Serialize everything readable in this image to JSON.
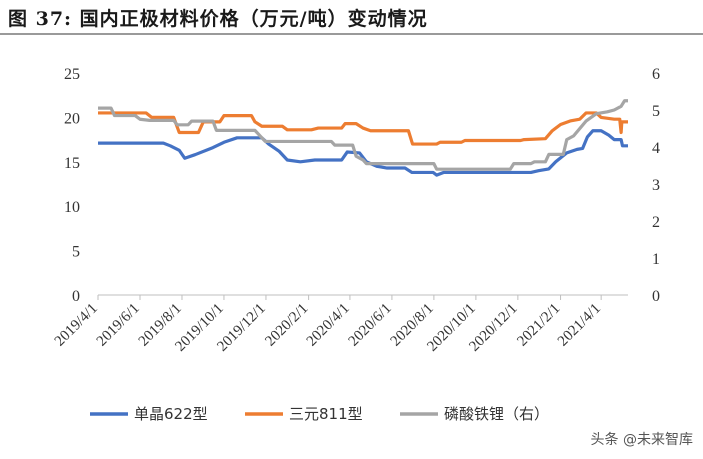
{
  "header": {
    "title": "图 37:  国内正极材料价格（万元/吨）变动情况"
  },
  "watermark": "头条 @未来智库",
  "chart_data": {
    "type": "line",
    "title": "图 37:  国内正极材料价格（万元/吨）变动情况",
    "y_left": {
      "min": 0,
      "max": 25,
      "ticks": [
        0,
        5,
        10,
        15,
        20,
        25
      ]
    },
    "y_right": {
      "min": 0,
      "max": 6,
      "ticks": [
        0,
        1,
        2,
        3,
        4,
        5,
        6
      ]
    },
    "x_range": [
      "2019-04-01",
      "2021-05-10"
    ],
    "x_ticks": [
      "2019/4/1",
      "2019/6/1",
      "2019/8/1",
      "2019/10/1",
      "2019/12/1",
      "2020/2/1",
      "2020/4/1",
      "2020/6/1",
      "2020/8/1",
      "2020/10/1",
      "2020/12/1",
      "2021/2/1",
      "2021/4/1"
    ],
    "grid": false,
    "legend_position": "bottom",
    "series": [
      {
        "name": "单晶622型",
        "axis": "left",
        "color": "#4472C4",
        "points": [
          [
            "2019-04-01",
            17.1
          ],
          [
            "2019-07-05",
            17.1
          ],
          [
            "2019-07-15",
            16.8
          ],
          [
            "2019-07-28",
            16.3
          ],
          [
            "2019-08-05",
            15.4
          ],
          [
            "2019-08-20",
            15.8
          ],
          [
            "2019-09-15",
            16.6
          ],
          [
            "2019-10-01",
            17.2
          ],
          [
            "2019-10-20",
            17.7
          ],
          [
            "2019-11-25",
            17.7
          ],
          [
            "2019-12-05",
            17.0
          ],
          [
            "2019-12-20",
            16.2
          ],
          [
            "2020-01-01",
            15.2
          ],
          [
            "2020-01-20",
            15.0
          ],
          [
            "2020-02-10",
            15.2
          ],
          [
            "2020-03-20",
            15.2
          ],
          [
            "2020-03-28",
            16.1
          ],
          [
            "2020-04-15",
            16.0
          ],
          [
            "2020-04-25",
            15.0
          ],
          [
            "2020-05-10",
            14.5
          ],
          [
            "2020-05-25",
            14.3
          ],
          [
            "2020-06-20",
            14.3
          ],
          [
            "2020-06-30",
            13.8
          ],
          [
            "2020-07-31",
            13.8
          ],
          [
            "2020-08-05",
            13.5
          ],
          [
            "2020-08-15",
            13.8
          ],
          [
            "2020-12-20",
            13.8
          ],
          [
            "2020-12-31",
            14.0
          ],
          [
            "2021-01-15",
            14.2
          ],
          [
            "2021-01-25",
            15.0
          ],
          [
            "2021-02-10",
            16.0
          ],
          [
            "2021-02-25",
            16.4
          ],
          [
            "2021-03-05",
            16.5
          ],
          [
            "2021-03-12",
            17.8
          ],
          [
            "2021-03-20",
            18.5
          ],
          [
            "2021-04-01",
            18.5
          ],
          [
            "2021-04-12",
            18.0
          ],
          [
            "2021-04-20",
            17.5
          ],
          [
            "2021-04-30",
            17.5
          ],
          [
            "2021-05-02",
            16.8
          ],
          [
            "2021-05-10",
            16.8
          ]
        ]
      },
      {
        "name": "三元811型",
        "axis": "left",
        "color": "#ED7D31",
        "points": [
          [
            "2019-04-01",
            20.5
          ],
          [
            "2019-06-10",
            20.5
          ],
          [
            "2019-06-18",
            20.0
          ],
          [
            "2019-07-20",
            20.0
          ],
          [
            "2019-07-28",
            18.3
          ],
          [
            "2019-08-25",
            18.3
          ],
          [
            "2019-09-01",
            19.5
          ],
          [
            "2019-09-25",
            19.5
          ],
          [
            "2019-10-01",
            20.2
          ],
          [
            "2019-11-10",
            20.2
          ],
          [
            "2019-11-15",
            19.5
          ],
          [
            "2019-11-25",
            19.0
          ],
          [
            "2019-12-25",
            19.0
          ],
          [
            "2020-01-01",
            18.6
          ],
          [
            "2020-02-05",
            18.6
          ],
          [
            "2020-02-15",
            18.8
          ],
          [
            "2020-03-20",
            18.8
          ],
          [
            "2020-03-25",
            19.3
          ],
          [
            "2020-04-10",
            19.3
          ],
          [
            "2020-04-20",
            18.8
          ],
          [
            "2020-05-01",
            18.5
          ],
          [
            "2020-06-25",
            18.5
          ],
          [
            "2020-07-01",
            17.0
          ],
          [
            "2020-08-05",
            17.0
          ],
          [
            "2020-08-10",
            17.2
          ],
          [
            "2020-09-10",
            17.2
          ],
          [
            "2020-09-15",
            17.4
          ],
          [
            "2020-12-05",
            17.4
          ],
          [
            "2020-12-10",
            17.5
          ],
          [
            "2021-01-10",
            17.6
          ],
          [
            "2021-01-20",
            18.5
          ],
          [
            "2021-02-01",
            19.2
          ],
          [
            "2021-02-15",
            19.6
          ],
          [
            "2021-03-01",
            19.8
          ],
          [
            "2021-03-10",
            20.5
          ],
          [
            "2021-03-25",
            20.5
          ],
          [
            "2021-04-01",
            20.0
          ],
          [
            "2021-04-20",
            19.8
          ],
          [
            "2021-04-28",
            19.8
          ],
          [
            "2021-04-30",
            18.3
          ],
          [
            "2021-05-01",
            19.5
          ],
          [
            "2021-05-10",
            19.5
          ]
        ]
      },
      {
        "name": "磷酸铁锂（右）",
        "axis": "right",
        "color": "#A5A5A5",
        "points": [
          [
            "2019-04-01",
            5.05
          ],
          [
            "2019-04-20",
            5.05
          ],
          [
            "2019-04-25",
            4.85
          ],
          [
            "2019-05-25",
            4.85
          ],
          [
            "2019-06-01",
            4.75
          ],
          [
            "2019-06-15",
            4.72
          ],
          [
            "2019-07-20",
            4.72
          ],
          [
            "2019-07-25",
            4.6
          ],
          [
            "2019-08-10",
            4.6
          ],
          [
            "2019-08-15",
            4.7
          ],
          [
            "2019-09-15",
            4.7
          ],
          [
            "2019-09-20",
            4.45
          ],
          [
            "2019-11-15",
            4.45
          ],
          [
            "2019-11-20",
            4.35
          ],
          [
            "2019-11-30",
            4.15
          ],
          [
            "2020-03-05",
            4.15
          ],
          [
            "2020-03-10",
            4.05
          ],
          [
            "2020-04-05",
            4.05
          ],
          [
            "2020-04-10",
            3.75
          ],
          [
            "2020-04-20",
            3.65
          ],
          [
            "2020-04-25",
            3.55
          ],
          [
            "2020-08-01",
            3.55
          ],
          [
            "2020-08-05",
            3.4
          ],
          [
            "2020-11-20",
            3.4
          ],
          [
            "2020-11-25",
            3.55
          ],
          [
            "2020-12-20",
            3.55
          ],
          [
            "2020-12-25",
            3.6
          ],
          [
            "2021-01-10",
            3.6
          ],
          [
            "2021-01-15",
            3.8
          ],
          [
            "2021-02-05",
            3.8
          ],
          [
            "2021-02-10",
            4.2
          ],
          [
            "2021-02-20",
            4.3
          ],
          [
            "2021-03-10",
            4.7
          ],
          [
            "2021-03-25",
            4.9
          ],
          [
            "2021-04-10",
            4.95
          ],
          [
            "2021-04-20",
            5.0
          ],
          [
            "2021-04-30",
            5.1
          ],
          [
            "2021-05-05",
            5.25
          ],
          [
            "2021-05-10",
            5.25
          ]
        ]
      }
    ]
  }
}
